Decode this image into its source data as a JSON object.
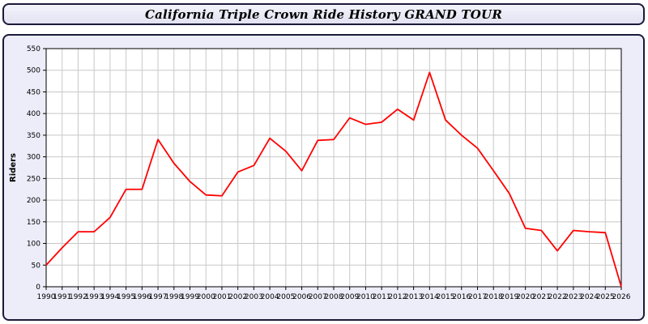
{
  "header": {
    "title": "California Triple Crown Ride History GRAND TOUR"
  },
  "chart_data": {
    "type": "line",
    "title": "California Triple Crown Ride History GRAND TOUR",
    "xlabel": "",
    "ylabel": "Riders",
    "ylim": [
      0,
      550
    ],
    "y_tick_step": 50,
    "grid": true,
    "line_color": "#ff0000",
    "plot_background": "#ffffff",
    "panel_background": "#ecedf8",
    "grid_color": "#c8c8c8",
    "x": [
      1990,
      1991,
      1992,
      1993,
      1994,
      1995,
      1996,
      1997,
      1998,
      1999,
      2000,
      2001,
      2002,
      2003,
      2004,
      2005,
      2006,
      2007,
      2008,
      2009,
      2010,
      2011,
      2012,
      2013,
      2014,
      2015,
      2016,
      2017,
      2018,
      2019,
      2020,
      2021,
      2022,
      2023,
      2024,
      2025,
      2026
    ],
    "values": [
      50,
      90,
      127,
      127,
      160,
      225,
      225,
      340,
      285,
      243,
      212,
      210,
      265,
      280,
      343,
      313,
      268,
      338,
      340,
      390,
      375,
      380,
      410,
      385,
      495,
      385,
      350,
      320,
      268,
      215,
      135,
      130,
      83,
      130,
      127,
      125,
      0
    ]
  }
}
